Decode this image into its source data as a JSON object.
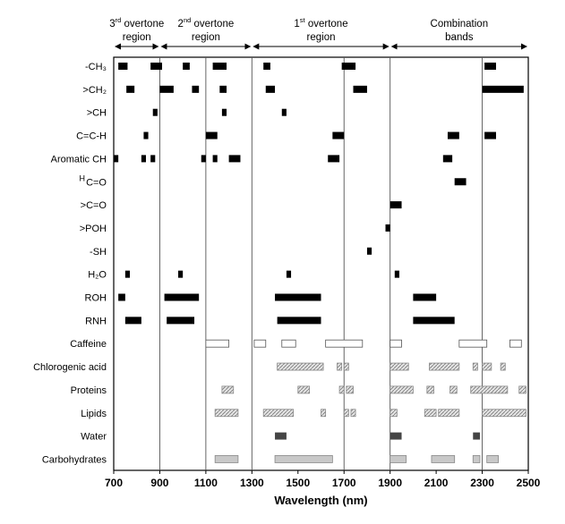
{
  "chart_data": {
    "type": "bar",
    "xlabel": "Wavelength (nm)",
    "xlim": [
      700,
      2500
    ],
    "xticks": [
      700,
      900,
      1100,
      1300,
      1500,
      1700,
      1900,
      2100,
      2300,
      2500
    ],
    "vertical_gridlines": [
      900,
      1100,
      1300,
      1700,
      1900,
      2300
    ],
    "regions": [
      {
        "line1_num": "3",
        "line1_sup": "rd",
        "line1_rest": " overtone",
        "line2": "region",
        "range": [
          700,
          900
        ]
      },
      {
        "line1_num": "2",
        "line1_sup": "nd",
        "line1_rest": " overtone",
        "line2": "region",
        "range": [
          900,
          1300
        ]
      },
      {
        "line1_num": "1",
        "line1_sup": "st",
        "line1_rest": " overtone",
        "line2": "region",
        "range": [
          1300,
          1900
        ]
      },
      {
        "line1_num": "",
        "line1_sup": "",
        "line1_rest": "Combination",
        "line2": "bands",
        "range": [
          1900,
          2500
        ]
      }
    ],
    "fill_styles": {
      "solid": "#000000",
      "outline": "#ffffff",
      "hatched": "#cfcfcf",
      "dark": "#454545",
      "gray": "#c8c8c8"
    },
    "rows": [
      {
        "label": "-CH₃",
        "bars": [
          [
            720,
            760,
            "solid"
          ],
          [
            860,
            910,
            "solid"
          ],
          [
            1000,
            1030,
            "solid"
          ],
          [
            1130,
            1190,
            "solid"
          ],
          [
            1350,
            1380,
            "solid"
          ],
          [
            1690,
            1750,
            "solid"
          ],
          [
            2310,
            2360,
            "solid"
          ]
        ]
      },
      {
        "label": ">CH₂",
        "bars": [
          [
            755,
            790,
            "solid"
          ],
          [
            900,
            960,
            "solid"
          ],
          [
            1040,
            1070,
            "solid"
          ],
          [
            1160,
            1190,
            "solid"
          ],
          [
            1360,
            1400,
            "solid"
          ],
          [
            1740,
            1800,
            "solid"
          ],
          [
            2300,
            2480,
            "solid"
          ]
        ]
      },
      {
        "label": ">CH",
        "bars": [
          [
            870,
            890,
            "solid"
          ],
          [
            1170,
            1190,
            "solid"
          ],
          [
            1430,
            1450,
            "solid"
          ]
        ]
      },
      {
        "label": "C=C-H",
        "bars": [
          [
            830,
            850,
            "solid"
          ],
          [
            1100,
            1150,
            "solid"
          ],
          [
            1650,
            1700,
            "solid"
          ],
          [
            2150,
            2200,
            "solid"
          ],
          [
            2310,
            2360,
            "solid"
          ]
        ]
      },
      {
        "label": "Aromatic CH",
        "bars": [
          [
            700,
            720,
            "solid"
          ],
          [
            820,
            840,
            "solid"
          ],
          [
            860,
            880,
            "solid"
          ],
          [
            1080,
            1100,
            "solid"
          ],
          [
            1130,
            1150,
            "solid"
          ],
          [
            1200,
            1250,
            "solid"
          ],
          [
            1630,
            1680,
            "solid"
          ],
          [
            2130,
            2170,
            "solid"
          ]
        ]
      },
      {
        "label": "C=O",
        "label_prefix": "H",
        "bars": [
          [
            2180,
            2230,
            "solid"
          ]
        ]
      },
      {
        "label": ">C=O",
        "bars": [
          [
            1900,
            1950,
            "solid"
          ]
        ]
      },
      {
        "label": ">POH",
        "bars": [
          [
            1880,
            1900,
            "solid"
          ]
        ]
      },
      {
        "label": "-SH",
        "bars": [
          [
            1800,
            1820,
            "solid"
          ]
        ]
      },
      {
        "label": "H₂O",
        "bars": [
          [
            750,
            770,
            "solid"
          ],
          [
            980,
            1000,
            "solid"
          ],
          [
            1450,
            1470,
            "solid"
          ],
          [
            1920,
            1940,
            "solid"
          ]
        ]
      },
      {
        "label": "ROH",
        "bars": [
          [
            720,
            750,
            "solid"
          ],
          [
            920,
            1070,
            "solid"
          ],
          [
            1400,
            1600,
            "solid"
          ],
          [
            2000,
            2100,
            "solid"
          ]
        ]
      },
      {
        "label": "RNH",
        "bars": [
          [
            750,
            820,
            "solid"
          ],
          [
            930,
            1050,
            "solid"
          ],
          [
            1410,
            1600,
            "solid"
          ],
          [
            2000,
            2180,
            "solid"
          ]
        ]
      },
      {
        "label": "Caffeine",
        "bars": [
          [
            1100,
            1200,
            "outline"
          ],
          [
            1310,
            1360,
            "outline"
          ],
          [
            1430,
            1490,
            "outline"
          ],
          [
            1620,
            1780,
            "outline"
          ],
          [
            1900,
            1950,
            "outline"
          ],
          [
            2200,
            2320,
            "outline"
          ],
          [
            2420,
            2470,
            "outline"
          ]
        ]
      },
      {
        "label": "Chlorogenic acid",
        "bars": [
          [
            1410,
            1610,
            "hatched"
          ],
          [
            1670,
            1690,
            "hatched"
          ],
          [
            1700,
            1720,
            "hatched"
          ],
          [
            1900,
            1980,
            "hatched"
          ],
          [
            2070,
            2200,
            "hatched"
          ],
          [
            2260,
            2280,
            "hatched"
          ],
          [
            2300,
            2340,
            "hatched"
          ],
          [
            2380,
            2400,
            "hatched"
          ]
        ]
      },
      {
        "label": "Proteins",
        "bars": [
          [
            1170,
            1220,
            "hatched"
          ],
          [
            1500,
            1550,
            "hatched"
          ],
          [
            1680,
            1700,
            "hatched"
          ],
          [
            1710,
            1740,
            "hatched"
          ],
          [
            1900,
            2000,
            "hatched"
          ],
          [
            2060,
            2090,
            "hatched"
          ],
          [
            2160,
            2190,
            "hatched"
          ],
          [
            2250,
            2410,
            "hatched"
          ],
          [
            2460,
            2490,
            "hatched"
          ]
        ]
      },
      {
        "label": "Lipids",
        "bars": [
          [
            1140,
            1240,
            "hatched"
          ],
          [
            1350,
            1480,
            "hatched"
          ],
          [
            1600,
            1620,
            "hatched"
          ],
          [
            1700,
            1720,
            "hatched"
          ],
          [
            1730,
            1750,
            "hatched"
          ],
          [
            1900,
            1930,
            "hatched"
          ],
          [
            2050,
            2100,
            "hatched"
          ],
          [
            2110,
            2200,
            "hatched"
          ],
          [
            2300,
            2490,
            "hatched"
          ]
        ]
      },
      {
        "label": "Water",
        "bars": [
          [
            1400,
            1450,
            "dark"
          ],
          [
            1900,
            1950,
            "dark"
          ],
          [
            2260,
            2290,
            "dark"
          ]
        ]
      },
      {
        "label": "Carbohydrates",
        "bars": [
          [
            1140,
            1240,
            "gray"
          ],
          [
            1400,
            1650,
            "gray"
          ],
          [
            1900,
            1970,
            "gray"
          ],
          [
            2080,
            2180,
            "gray"
          ],
          [
            2260,
            2290,
            "gray"
          ],
          [
            2320,
            2370,
            "gray"
          ]
        ]
      }
    ]
  }
}
